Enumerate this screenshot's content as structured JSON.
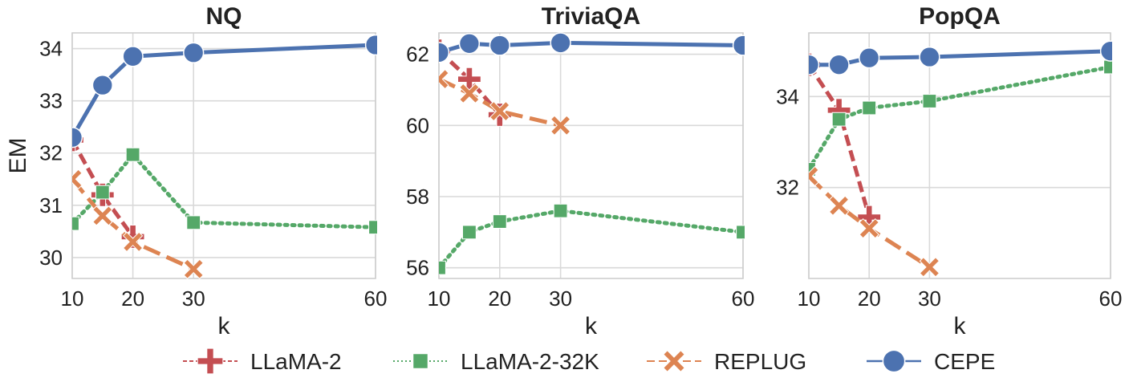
{
  "series_styles": {
    "LLaMA-2": {
      "color": "#c44e52",
      "marker": "plus",
      "dash": "14,6"
    },
    "LLaMA-2-32K": {
      "color": "#55a868",
      "marker": "square",
      "dash": "3,6"
    },
    "REPLUG": {
      "color": "#dd8452",
      "marker": "x",
      "dash": "22,9"
    },
    "CEPE": {
      "color": "#4c72b0",
      "marker": "circle",
      "dash": ""
    }
  },
  "legend": [
    "LLaMA-2",
    "LLaMA-2-32K",
    "REPLUG",
    "CEPE"
  ],
  "chart_data": [
    {
      "type": "line",
      "title": "NQ",
      "xlabel": "k",
      "ylabel": "EM",
      "xlim": [
        10,
        60
      ],
      "ylim": [
        29.6,
        34.3
      ],
      "xticks": [
        10,
        20,
        30,
        60
      ],
      "yticks": [
        30,
        31,
        32,
        33,
        34
      ],
      "series": [
        {
          "name": "LLaMA-2",
          "x": [
            10,
            15,
            20
          ],
          "y": [
            32.25,
            31.2,
            30.4
          ]
        },
        {
          "name": "LLaMA-2-32K",
          "x": [
            10,
            15,
            20,
            30,
            60
          ],
          "y": [
            30.65,
            31.25,
            31.97,
            30.67,
            30.58
          ]
        },
        {
          "name": "REPLUG",
          "x": [
            10,
            15,
            20,
            30
          ],
          "y": [
            31.5,
            30.8,
            30.3,
            29.78
          ]
        },
        {
          "name": "CEPE",
          "x": [
            10,
            15,
            20,
            30,
            60
          ],
          "y": [
            32.3,
            33.3,
            33.85,
            33.92,
            34.07
          ]
        }
      ]
    },
    {
      "type": "line",
      "title": "TriviaQA",
      "xlabel": "k",
      "ylabel": "",
      "xlim": [
        10,
        60
      ],
      "ylim": [
        55.7,
        62.6
      ],
      "xticks": [
        10,
        20,
        30,
        60
      ],
      "yticks": [
        56,
        58,
        60,
        62
      ],
      "series": [
        {
          "name": "LLaMA-2",
          "x": [
            10,
            15,
            20
          ],
          "y": [
            62.1,
            61.3,
            60.3
          ]
        },
        {
          "name": "LLaMA-2-32K",
          "x": [
            10,
            15,
            20,
            30,
            60
          ],
          "y": [
            56.0,
            57.0,
            57.3,
            57.6,
            57.0
          ]
        },
        {
          "name": "REPLUG",
          "x": [
            10,
            15,
            20,
            30
          ],
          "y": [
            61.3,
            60.9,
            60.4,
            60.0
          ]
        },
        {
          "name": "CEPE",
          "x": [
            10,
            15,
            20,
            30,
            60
          ],
          "y": [
            62.05,
            62.3,
            62.25,
            62.32,
            62.25
          ]
        }
      ]
    },
    {
      "type": "line",
      "title": "PopQA",
      "xlabel": "k",
      "ylabel": "",
      "xlim": [
        10,
        60
      ],
      "ylim": [
        30.0,
        35.4
      ],
      "xticks": [
        10,
        20,
        30,
        60
      ],
      "yticks": [
        32,
        34
      ],
      "series": [
        {
          "name": "LLaMA-2",
          "x": [
            10,
            15,
            20
          ],
          "y": [
            34.7,
            33.7,
            31.35
          ]
        },
        {
          "name": "LLaMA-2-32K",
          "x": [
            10,
            15,
            20,
            30,
            60
          ],
          "y": [
            32.4,
            33.5,
            33.75,
            33.9,
            34.65
          ]
        },
        {
          "name": "REPLUG",
          "x": [
            10,
            15,
            20,
            30
          ],
          "y": [
            32.25,
            31.6,
            31.1,
            30.25
          ]
        },
        {
          "name": "CEPE",
          "x": [
            10,
            15,
            20,
            30,
            60
          ],
          "y": [
            34.7,
            34.7,
            34.85,
            34.87,
            35.0
          ]
        }
      ]
    }
  ]
}
